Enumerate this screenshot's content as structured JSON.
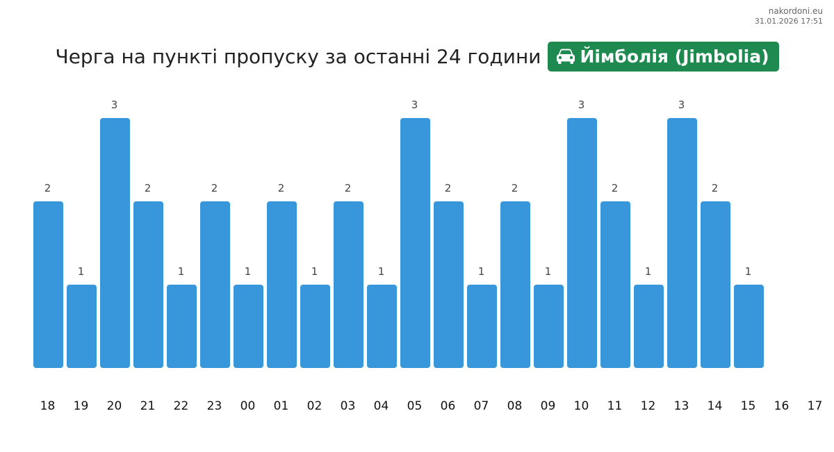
{
  "watermark": {
    "site": "nakordoni.eu",
    "timestamp": "31.01.2026 17:51"
  },
  "header": {
    "title": "Черга на пункті пропуску за останні 24 години",
    "badge_label": "Йімболія (Jimbolia)",
    "badge_icon": "car-icon",
    "badge_color": "#1e8a50"
  },
  "colors": {
    "bar": "#3897db",
    "value_label": "#444444",
    "tick_label": "#111111"
  },
  "chart_data": {
    "type": "bar",
    "title": "",
    "xlabel": "",
    "ylabel": "",
    "categories": [
      "18",
      "19",
      "20",
      "21",
      "22",
      "23",
      "00",
      "01",
      "02",
      "03",
      "04",
      "05",
      "06",
      "07",
      "08",
      "09",
      "10",
      "11",
      "12",
      "13",
      "14",
      "15",
      "16",
      "17"
    ],
    "values": [
      2,
      1,
      3,
      2,
      1,
      2,
      1,
      2,
      1,
      2,
      1,
      3,
      2,
      1,
      2,
      1,
      3,
      2,
      1,
      3,
      2,
      1,
      null,
      null
    ],
    "value_labels": [
      "2",
      "1",
      "3",
      "2",
      "1",
      "2",
      "1",
      "2",
      "1",
      "2",
      "1",
      "3",
      "2",
      "1",
      "2",
      "1",
      "3",
      "2",
      "1",
      "3",
      "2",
      "1",
      "",
      ""
    ],
    "ylim": [
      0,
      3
    ],
    "grid": false,
    "legend": "none"
  }
}
